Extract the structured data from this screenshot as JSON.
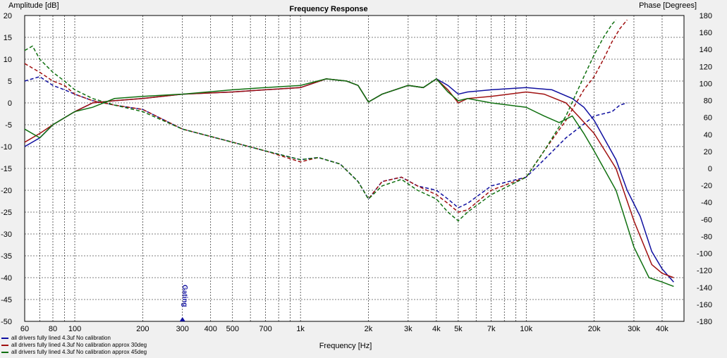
{
  "chart_data": {
    "type": "line",
    "title": "Frequency Response",
    "xlabel": "Frequency [Hz]",
    "ylabel": "Amplitude [dB]",
    "y2label": "Phase [Degrees]",
    "xscale": "log",
    "xlim": [
      60,
      50000
    ],
    "ylim": [
      -50,
      20
    ],
    "y2lim": [
      -180,
      180
    ],
    "x_ticks": [
      {
        "v": 60,
        "t": "60"
      },
      {
        "v": 80,
        "t": "80"
      },
      {
        "v": 100,
        "t": "100"
      },
      {
        "v": 200,
        "t": "200"
      },
      {
        "v": 300,
        "t": "300"
      },
      {
        "v": 400,
        "t": "400"
      },
      {
        "v": 500,
        "t": "500"
      },
      {
        "v": 700,
        "t": "700"
      },
      {
        "v": 1000,
        "t": "1k"
      },
      {
        "v": 2000,
        "t": "2k"
      },
      {
        "v": 3000,
        "t": "3k"
      },
      {
        "v": 4000,
        "t": "4k"
      },
      {
        "v": 5000,
        "t": "5k"
      },
      {
        "v": 7000,
        "t": "7k"
      },
      {
        "v": 10000,
        "t": "10k"
      },
      {
        "v": 20000,
        "t": "20k"
      },
      {
        "v": 30000,
        "t": "30k"
      },
      {
        "v": 40000,
        "t": "40k"
      }
    ],
    "y_ticks": [
      20,
      15,
      10,
      5,
      0,
      -5,
      -10,
      -15,
      -20,
      -25,
      -30,
      -35,
      -40,
      -45,
      -50
    ],
    "y2_ticks": [
      180,
      160,
      140,
      120,
      100,
      80,
      60,
      40,
      20,
      0,
      -20,
      -40,
      -60,
      -80,
      -100,
      -120,
      -140,
      -160,
      -180
    ],
    "grid": true,
    "marker": {
      "label": "Gating",
      "x": 300
    },
    "legend_position": "bottom-left",
    "series": [
      {
        "name": "all drivers fully lined 4.3uf No calibration",
        "color": "#1010a0",
        "magnitude": [
          [
            60,
            5
          ],
          [
            70,
            6
          ],
          [
            80,
            4
          ],
          [
            90,
            3
          ],
          [
            100,
            2
          ],
          [
            120,
            0.5
          ],
          [
            150,
            -0.5
          ],
          [
            200,
            -1.5
          ],
          [
            300,
            -6
          ],
          [
            500,
            -9
          ],
          [
            700,
            -11
          ],
          [
            1000,
            -13
          ],
          [
            1200,
            -12.5
          ],
          [
            1500,
            -14
          ],
          [
            1800,
            -18
          ],
          [
            2000,
            -22
          ],
          [
            2300,
            -18
          ],
          [
            2800,
            -17
          ],
          [
            3300,
            -19
          ],
          [
            4000,
            -20
          ],
          [
            4500,
            -22
          ],
          [
            5000,
            -24
          ],
          [
            5500,
            -23
          ],
          [
            7000,
            -19
          ],
          [
            10000,
            -17
          ],
          [
            12000,
            -13
          ],
          [
            15000,
            -8
          ],
          [
            20000,
            -3
          ],
          [
            24000,
            -2
          ],
          [
            26000,
            -0.5
          ],
          [
            28000,
            0
          ]
        ],
        "phase": [
          [
            60,
            -10
          ],
          [
            70,
            -8
          ],
          [
            80,
            -5
          ],
          [
            100,
            -2
          ],
          [
            120,
            0
          ],
          [
            150,
            0.5
          ],
          [
            200,
            1
          ],
          [
            300,
            2
          ],
          [
            500,
            2.5
          ],
          [
            700,
            3
          ],
          [
            1000,
            3.5
          ],
          [
            1300,
            5.5
          ],
          [
            1600,
            5
          ],
          [
            1800,
            4
          ],
          [
            2000,
            0.2
          ],
          [
            2300,
            2
          ],
          [
            3000,
            4
          ],
          [
            3500,
            3.5
          ],
          [
            4000,
            5.5
          ],
          [
            4500,
            4
          ],
          [
            5000,
            2
          ],
          [
            5500,
            2.5
          ],
          [
            7000,
            3
          ],
          [
            10000,
            3.5
          ],
          [
            13000,
            3
          ],
          [
            16000,
            1
          ],
          [
            18000,
            -1
          ],
          [
            20000,
            -4
          ],
          [
            25000,
            -13
          ],
          [
            28000,
            -20
          ],
          [
            32000,
            -26
          ],
          [
            36000,
            -34
          ],
          [
            40000,
            -38
          ],
          [
            45000,
            -41
          ]
        ]
      },
      {
        "name": "all drivers fully lined 4.3uf No calibration approx 30deg",
        "color": "#a01010",
        "magnitude": [
          [
            60,
            9
          ],
          [
            70,
            7
          ],
          [
            80,
            5
          ],
          [
            90,
            4
          ],
          [
            100,
            2
          ],
          [
            120,
            0.5
          ],
          [
            150,
            -0.5
          ],
          [
            200,
            -1.5
          ],
          [
            300,
            -6
          ],
          [
            500,
            -9
          ],
          [
            700,
            -11
          ],
          [
            1000,
            -13.5
          ],
          [
            1200,
            -12.5
          ],
          [
            1500,
            -14
          ],
          [
            1800,
            -18
          ],
          [
            2000,
            -22
          ],
          [
            2300,
            -18
          ],
          [
            2800,
            -17
          ],
          [
            3300,
            -19
          ],
          [
            4000,
            -21
          ],
          [
            4500,
            -23
          ],
          [
            5000,
            -25
          ],
          [
            5500,
            -24.5
          ],
          [
            7000,
            -20
          ],
          [
            10000,
            -17
          ],
          [
            12000,
            -11
          ],
          [
            15000,
            -4
          ],
          [
            18000,
            3
          ],
          [
            20000,
            6
          ],
          [
            22000,
            10
          ],
          [
            24000,
            14
          ],
          [
            26000,
            17
          ],
          [
            28000,
            19
          ]
        ],
        "phase": [
          [
            60,
            -9
          ],
          [
            70,
            -7
          ],
          [
            80,
            -5
          ],
          [
            100,
            -2
          ],
          [
            120,
            0
          ],
          [
            150,
            0.5
          ],
          [
            200,
            1
          ],
          [
            300,
            2
          ],
          [
            500,
            2.5
          ],
          [
            700,
            3
          ],
          [
            1000,
            3.5
          ],
          [
            1300,
            5.5
          ],
          [
            1600,
            5
          ],
          [
            1800,
            4
          ],
          [
            2000,
            0.2
          ],
          [
            2300,
            2
          ],
          [
            3000,
            4
          ],
          [
            3500,
            3.5
          ],
          [
            4000,
            5.5
          ],
          [
            4500,
            3
          ],
          [
            5000,
            0
          ],
          [
            5500,
            1
          ],
          [
            7000,
            1.5
          ],
          [
            10000,
            2.5
          ],
          [
            12000,
            2
          ],
          [
            15000,
            0
          ],
          [
            17000,
            -3
          ],
          [
            20000,
            -7
          ],
          [
            25000,
            -15
          ],
          [
            30000,
            -27
          ],
          [
            36000,
            -37
          ],
          [
            40000,
            -39
          ],
          [
            45000,
            -40
          ]
        ]
      },
      {
        "name": "all drivers fully lined 4.3uf No calibration approx 45deg",
        "color": "#107010",
        "magnitude": [
          [
            60,
            12
          ],
          [
            65,
            13
          ],
          [
            70,
            10
          ],
          [
            80,
            7
          ],
          [
            90,
            5
          ],
          [
            100,
            3
          ],
          [
            120,
            1
          ],
          [
            150,
            -0.5
          ],
          [
            200,
            -2
          ],
          [
            300,
            -6
          ],
          [
            500,
            -9
          ],
          [
            700,
            -11
          ],
          [
            1000,
            -13
          ],
          [
            1200,
            -12.5
          ],
          [
            1500,
            -14
          ],
          [
            1800,
            -18
          ],
          [
            2000,
            -22
          ],
          [
            2300,
            -19
          ],
          [
            2800,
            -17.5
          ],
          [
            3300,
            -20
          ],
          [
            4000,
            -22
          ],
          [
            4500,
            -25
          ],
          [
            5000,
            -27
          ],
          [
            5500,
            -25
          ],
          [
            7000,
            -21
          ],
          [
            10000,
            -17
          ],
          [
            12000,
            -11
          ],
          [
            15000,
            -3
          ],
          [
            18000,
            6
          ],
          [
            20000,
            11
          ],
          [
            22000,
            15
          ],
          [
            24000,
            18
          ],
          [
            25000,
            19
          ]
        ],
        "phase": [
          [
            60,
            -6
          ],
          [
            70,
            -8
          ],
          [
            80,
            -5
          ],
          [
            100,
            -2
          ],
          [
            120,
            -1
          ],
          [
            150,
            1
          ],
          [
            200,
            1.5
          ],
          [
            300,
            2
          ],
          [
            500,
            3
          ],
          [
            700,
            3.5
          ],
          [
            1000,
            4
          ],
          [
            1300,
            5.5
          ],
          [
            1600,
            5
          ],
          [
            1800,
            4
          ],
          [
            2000,
            0.2
          ],
          [
            2300,
            2
          ],
          [
            3000,
            4
          ],
          [
            3500,
            3.5
          ],
          [
            4000,
            5.5
          ],
          [
            4500,
            2.5
          ],
          [
            5000,
            0.5
          ],
          [
            5500,
            1
          ],
          [
            7000,
            0
          ],
          [
            10000,
            -1
          ],
          [
            12000,
            -3
          ],
          [
            14000,
            -4.5
          ],
          [
            16000,
            -3
          ],
          [
            18000,
            -7
          ],
          [
            20000,
            -11
          ],
          [
            25000,
            -20
          ],
          [
            30000,
            -33
          ],
          [
            35000,
            -40
          ],
          [
            40000,
            -41
          ],
          [
            45000,
            -42
          ]
        ]
      }
    ]
  }
}
